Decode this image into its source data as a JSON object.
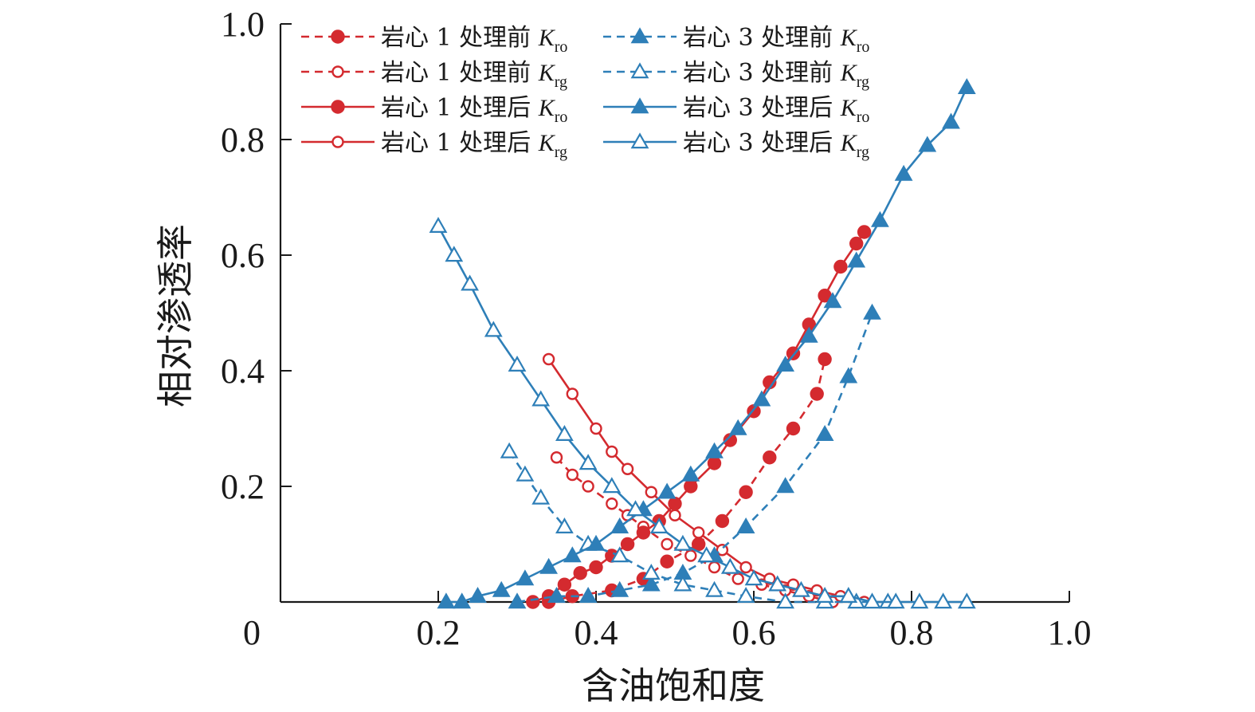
{
  "chart_data": {
    "type": "line",
    "title": "",
    "xlabel": "含油饱和度",
    "ylabel": "相对渗透率",
    "xlim": [
      0,
      1.0
    ],
    "ylim": [
      0,
      1.0
    ],
    "xticks": [
      "0",
      "0.2",
      "0.4",
      "0.6",
      "0.8",
      "1.0"
    ],
    "yticks": [
      "0.2",
      "0.4",
      "0.6",
      "0.8",
      "1.0"
    ],
    "grid": false,
    "legend_position": "top-left",
    "series": [
      {
        "name": "岩心 1 处理前 Kro",
        "legend_text": "岩心 1 处理前 ",
        "legend_symbol": "K",
        "legend_sub": "ro",
        "color": "#d42a2f",
        "line": "dashed",
        "marker": "circle-filled",
        "x": [
          0.34,
          0.37,
          0.42,
          0.46,
          0.49,
          0.53,
          0.56,
          0.59,
          0.62,
          0.65,
          0.68,
          0.69
        ],
        "y": [
          0.0,
          0.01,
          0.02,
          0.04,
          0.07,
          0.1,
          0.14,
          0.19,
          0.25,
          0.3,
          0.36,
          0.42
        ]
      },
      {
        "name": "岩心 1 处理前 Krg",
        "legend_text": "岩心 1 处理前 ",
        "legend_symbol": "K",
        "legend_sub": "rg",
        "color": "#d42a2f",
        "line": "dashed",
        "marker": "circle-open",
        "x": [
          0.35,
          0.37,
          0.39,
          0.42,
          0.44,
          0.46,
          0.49,
          0.52,
          0.55,
          0.58,
          0.61,
          0.64,
          0.67,
          0.7
        ],
        "y": [
          0.25,
          0.22,
          0.2,
          0.17,
          0.15,
          0.13,
          0.1,
          0.08,
          0.06,
          0.04,
          0.03,
          0.02,
          0.01,
          0.0
        ]
      },
      {
        "name": "岩心 1 处理后 Kro",
        "legend_text": "岩心 1 处理后 ",
        "legend_symbol": "K",
        "legend_sub": "ro",
        "color": "#d42a2f",
        "line": "solid",
        "marker": "circle-filled",
        "x": [
          0.32,
          0.34,
          0.36,
          0.38,
          0.4,
          0.42,
          0.44,
          0.46,
          0.48,
          0.5,
          0.52,
          0.55,
          0.57,
          0.6,
          0.62,
          0.65,
          0.67,
          0.69,
          0.71,
          0.73,
          0.74
        ],
        "y": [
          0.0,
          0.01,
          0.03,
          0.05,
          0.06,
          0.08,
          0.1,
          0.12,
          0.14,
          0.17,
          0.2,
          0.24,
          0.28,
          0.33,
          0.38,
          0.43,
          0.48,
          0.53,
          0.58,
          0.62,
          0.64
        ]
      },
      {
        "name": "岩心 1 处理后 Krg",
        "legend_text": "岩心 1 处理后 ",
        "legend_symbol": "K",
        "legend_sub": "rg",
        "color": "#d42a2f",
        "line": "solid",
        "marker": "circle-open",
        "x": [
          0.34,
          0.37,
          0.4,
          0.42,
          0.44,
          0.47,
          0.5,
          0.53,
          0.56,
          0.59,
          0.62,
          0.65,
          0.68,
          0.71,
          0.74
        ],
        "y": [
          0.42,
          0.36,
          0.3,
          0.26,
          0.23,
          0.19,
          0.15,
          0.12,
          0.09,
          0.06,
          0.04,
          0.03,
          0.02,
          0.01,
          0.0
        ]
      },
      {
        "name": "岩心 3 处理前 Kro",
        "legend_text": "岩心 3 处理前 ",
        "legend_symbol": "K",
        "legend_sub": "ro",
        "color": "#2e7fb8",
        "line": "dashed",
        "marker": "triangle-filled",
        "x": [
          0.3,
          0.35,
          0.39,
          0.43,
          0.47,
          0.51,
          0.55,
          0.59,
          0.64,
          0.69,
          0.72,
          0.75
        ],
        "y": [
          0.0,
          0.01,
          0.01,
          0.02,
          0.03,
          0.05,
          0.08,
          0.13,
          0.2,
          0.29,
          0.39,
          0.5
        ]
      },
      {
        "name": "岩心 3 处理前 Krg",
        "legend_text": "岩心 3 处理前 ",
        "legend_symbol": "K",
        "legend_sub": "rg",
        "color": "#2e7fb8",
        "line": "dashed",
        "marker": "triangle-open",
        "x": [
          0.29,
          0.31,
          0.33,
          0.36,
          0.39,
          0.43,
          0.47,
          0.51,
          0.55,
          0.59,
          0.64,
          0.69,
          0.73,
          0.77
        ],
        "y": [
          0.26,
          0.22,
          0.18,
          0.13,
          0.1,
          0.08,
          0.05,
          0.03,
          0.02,
          0.01,
          0.0,
          0.0,
          0.0,
          0.0
        ]
      },
      {
        "name": "岩心 3 处理后 Kro",
        "legend_text": "岩心 3 处理后 ",
        "legend_symbol": "K",
        "legend_sub": "ro",
        "color": "#2e7fb8",
        "line": "solid",
        "marker": "triangle-filled",
        "x": [
          0.21,
          0.23,
          0.25,
          0.28,
          0.31,
          0.34,
          0.37,
          0.4,
          0.43,
          0.46,
          0.49,
          0.52,
          0.55,
          0.58,
          0.61,
          0.64,
          0.67,
          0.7,
          0.73,
          0.76,
          0.79,
          0.82,
          0.85,
          0.87
        ],
        "y": [
          0.0,
          0.0,
          0.01,
          0.02,
          0.04,
          0.06,
          0.08,
          0.1,
          0.13,
          0.16,
          0.19,
          0.22,
          0.26,
          0.3,
          0.35,
          0.41,
          0.46,
          0.52,
          0.59,
          0.66,
          0.74,
          0.79,
          0.83,
          0.89
        ]
      },
      {
        "name": "岩心 3 处理后 Krg",
        "legend_text": "岩心 3 处理后 ",
        "legend_symbol": "K",
        "legend_sub": "rg",
        "color": "#2e7fb8",
        "line": "solid",
        "marker": "triangle-open",
        "x": [
          0.2,
          0.22,
          0.24,
          0.27,
          0.3,
          0.33,
          0.36,
          0.39,
          0.42,
          0.45,
          0.48,
          0.51,
          0.54,
          0.57,
          0.6,
          0.63,
          0.66,
          0.69,
          0.72,
          0.75,
          0.78,
          0.81,
          0.84,
          0.87
        ],
        "y": [
          0.65,
          0.6,
          0.55,
          0.47,
          0.41,
          0.35,
          0.29,
          0.24,
          0.2,
          0.16,
          0.13,
          0.1,
          0.08,
          0.06,
          0.04,
          0.03,
          0.02,
          0.01,
          0.01,
          0.0,
          0.0,
          0.0,
          0.0,
          0.0
        ]
      }
    ]
  }
}
